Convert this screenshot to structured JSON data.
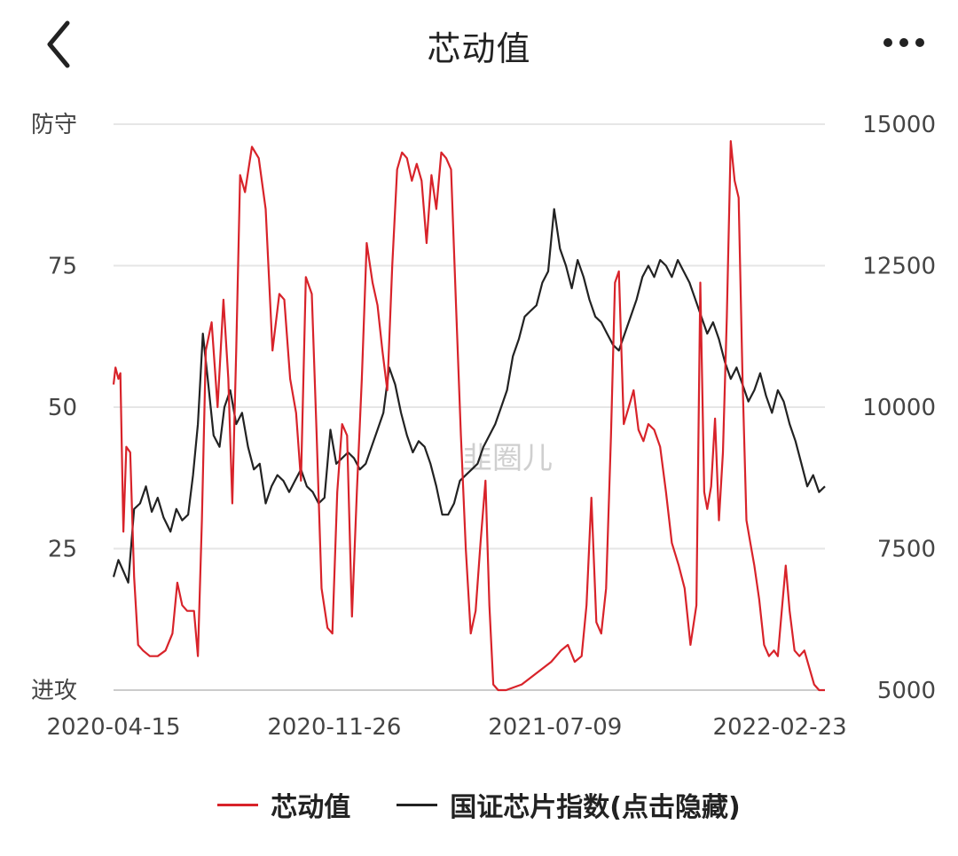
{
  "header": {
    "title": "芯动值",
    "back_icon": "chevron-left-icon",
    "more_icon": "more-dots-icon"
  },
  "colors": {
    "series1": "#d8232a",
    "series2": "#222222",
    "grid": "#e6e6e6",
    "watermark": "#cccccc"
  },
  "watermark": "韭圈儿",
  "chart_data": {
    "type": "line",
    "title": "",
    "grid": true,
    "legend_position": "bottom",
    "x_ticks": [
      "2020-04-15",
      "2020-11-26",
      "2021-07-09",
      "2022-02-23"
    ],
    "x_range": [
      "2020-04-15",
      "2022-04-10"
    ],
    "y_left": {
      "ticks": [
        "进攻",
        "25",
        "50",
        "75",
        "防守"
      ],
      "range": [
        0,
        100
      ]
    },
    "y_right": {
      "ticks": [
        "5000",
        "7500",
        "10000",
        "12500",
        "15000"
      ],
      "range": [
        5000,
        15000
      ]
    },
    "series": [
      {
        "name": "芯动值",
        "axis": "left",
        "color": "#d8232a",
        "points": [
          [
            "2020-04-15",
            54
          ],
          [
            "2020-04-17",
            57
          ],
          [
            "2020-04-20",
            55
          ],
          [
            "2020-04-22",
            56
          ],
          [
            "2020-04-25",
            28
          ],
          [
            "2020-04-28",
            43
          ],
          [
            "2020-05-02",
            42
          ],
          [
            "2020-05-06",
            20
          ],
          [
            "2020-05-10",
            8
          ],
          [
            "2020-05-15",
            7
          ],
          [
            "2020-05-22",
            6
          ],
          [
            "2020-05-30",
            6
          ],
          [
            "2020-06-07",
            7
          ],
          [
            "2020-06-14",
            10
          ],
          [
            "2020-06-19",
            19
          ],
          [
            "2020-06-24",
            15
          ],
          [
            "2020-06-29",
            14
          ],
          [
            "2020-07-06",
            14
          ],
          [
            "2020-07-10",
            6
          ],
          [
            "2020-07-14",
            30
          ],
          [
            "2020-07-18",
            60
          ],
          [
            "2020-07-24",
            65
          ],
          [
            "2020-07-30",
            50
          ],
          [
            "2020-08-05",
            69
          ],
          [
            "2020-08-10",
            55
          ],
          [
            "2020-08-14",
            33
          ],
          [
            "2020-08-18",
            60
          ],
          [
            "2020-08-22",
            91
          ],
          [
            "2020-08-27",
            88
          ],
          [
            "2020-09-03",
            96
          ],
          [
            "2020-09-10",
            94
          ],
          [
            "2020-09-17",
            85
          ],
          [
            "2020-09-24",
            60
          ],
          [
            "2020-10-01",
            70
          ],
          [
            "2020-10-06",
            69
          ],
          [
            "2020-10-12",
            55
          ],
          [
            "2020-10-18",
            49
          ],
          [
            "2020-10-23",
            37
          ],
          [
            "2020-10-28",
            73
          ],
          [
            "2020-11-03",
            70
          ],
          [
            "2020-11-08",
            45
          ],
          [
            "2020-11-13",
            18
          ],
          [
            "2020-11-19",
            11
          ],
          [
            "2020-11-24",
            10
          ],
          [
            "2020-11-29",
            35
          ],
          [
            "2020-12-04",
            47
          ],
          [
            "2020-12-09",
            45
          ],
          [
            "2020-12-14",
            13
          ],
          [
            "2020-12-19",
            35
          ],
          [
            "2020-12-24",
            55
          ],
          [
            "2020-12-29",
            79
          ],
          [
            "2021-01-04",
            72
          ],
          [
            "2021-01-09",
            68
          ],
          [
            "2021-01-14",
            60
          ],
          [
            "2021-01-19",
            53
          ],
          [
            "2021-01-24",
            75
          ],
          [
            "2021-01-29",
            92
          ],
          [
            "2021-02-03",
            95
          ],
          [
            "2021-02-08",
            94
          ],
          [
            "2021-02-13",
            90
          ],
          [
            "2021-02-18",
            93
          ],
          [
            "2021-02-23",
            90
          ],
          [
            "2021-02-28",
            79
          ],
          [
            "2021-03-05",
            91
          ],
          [
            "2021-03-10",
            85
          ],
          [
            "2021-03-15",
            95
          ],
          [
            "2021-03-20",
            94
          ],
          [
            "2021-03-25",
            92
          ],
          [
            "2021-03-30",
            68
          ],
          [
            "2021-04-04",
            45
          ],
          [
            "2021-04-09",
            25
          ],
          [
            "2021-04-14",
            10
          ],
          [
            "2021-04-19",
            14
          ],
          [
            "2021-04-24",
            26
          ],
          [
            "2021-04-29",
            37
          ],
          [
            "2021-05-03",
            15
          ],
          [
            "2021-05-07",
            1
          ],
          [
            "2021-05-12",
            0
          ],
          [
            "2021-05-20",
            0
          ],
          [
            "2021-06-05",
            1
          ],
          [
            "2021-06-20",
            3
          ],
          [
            "2021-07-05",
            5
          ],
          [
            "2021-07-15",
            7
          ],
          [
            "2021-07-22",
            8
          ],
          [
            "2021-07-29",
            5
          ],
          [
            "2021-08-05",
            6
          ],
          [
            "2021-08-10",
            15
          ],
          [
            "2021-08-15",
            34
          ],
          [
            "2021-08-20",
            12
          ],
          [
            "2021-08-25",
            10
          ],
          [
            "2021-08-30",
            18
          ],
          [
            "2021-09-04",
            45
          ],
          [
            "2021-09-08",
            72
          ],
          [
            "2021-09-12",
            74
          ],
          [
            "2021-09-17",
            47
          ],
          [
            "2021-09-22",
            50
          ],
          [
            "2021-09-27",
            53
          ],
          [
            "2021-10-02",
            46
          ],
          [
            "2021-10-07",
            44
          ],
          [
            "2021-10-12",
            47
          ],
          [
            "2021-10-18",
            46
          ],
          [
            "2021-10-24",
            43
          ],
          [
            "2021-10-30",
            35
          ],
          [
            "2021-11-05",
            26
          ],
          [
            "2021-11-12",
            22
          ],
          [
            "2021-11-18",
            18
          ],
          [
            "2021-11-24",
            8
          ],
          [
            "2021-11-30",
            15
          ],
          [
            "2021-12-04",
            72
          ],
          [
            "2021-12-08",
            35
          ],
          [
            "2021-12-11",
            32
          ],
          [
            "2021-12-15",
            36
          ],
          [
            "2021-12-19",
            48
          ],
          [
            "2021-12-23",
            30
          ],
          [
            "2021-12-27",
            42
          ],
          [
            "2021-12-31",
            66
          ],
          [
            "2022-01-04",
            97
          ],
          [
            "2022-01-08",
            90
          ],
          [
            "2022-01-12",
            87
          ],
          [
            "2022-01-16",
            55
          ],
          [
            "2022-01-20",
            30
          ],
          [
            "2022-01-24",
            26
          ],
          [
            "2022-01-28",
            22
          ],
          [
            "2022-02-02",
            16
          ],
          [
            "2022-02-07",
            8
          ],
          [
            "2022-02-12",
            6
          ],
          [
            "2022-02-17",
            7
          ],
          [
            "2022-02-21",
            6
          ],
          [
            "2022-02-25",
            14
          ],
          [
            "2022-03-01",
            22
          ],
          [
            "2022-03-05",
            14
          ],
          [
            "2022-03-10",
            7
          ],
          [
            "2022-03-15",
            6
          ],
          [
            "2022-03-20",
            7
          ],
          [
            "2022-03-25",
            4
          ],
          [
            "2022-03-30",
            1
          ],
          [
            "2022-04-04",
            0
          ],
          [
            "2022-04-10",
            0
          ]
        ]
      },
      {
        "name": "国证芯片指数(点击隐藏)",
        "axis": "right",
        "color": "#222222",
        "points": [
          [
            "2020-04-15",
            7000
          ],
          [
            "2020-04-20",
            7300
          ],
          [
            "2020-04-25",
            7100
          ],
          [
            "2020-04-30",
            6900
          ],
          [
            "2020-05-06",
            8200
          ],
          [
            "2020-05-12",
            8300
          ],
          [
            "2020-05-18",
            8600
          ],
          [
            "2020-05-24",
            8150
          ],
          [
            "2020-05-30",
            8400
          ],
          [
            "2020-06-05",
            8050
          ],
          [
            "2020-06-12",
            7800
          ],
          [
            "2020-06-18",
            8200
          ],
          [
            "2020-06-24",
            8000
          ],
          [
            "2020-06-30",
            8100
          ],
          [
            "2020-07-05",
            8800
          ],
          [
            "2020-07-10",
            9700
          ],
          [
            "2020-07-15",
            11300
          ],
          [
            "2020-07-20",
            10500
          ],
          [
            "2020-07-26",
            9500
          ],
          [
            "2020-08-01",
            9300
          ],
          [
            "2020-08-06",
            10000
          ],
          [
            "2020-08-12",
            10300
          ],
          [
            "2020-08-18",
            9700
          ],
          [
            "2020-08-24",
            9900
          ],
          [
            "2020-08-30",
            9300
          ],
          [
            "2020-09-05",
            8900
          ],
          [
            "2020-09-11",
            9000
          ],
          [
            "2020-09-17",
            8300
          ],
          [
            "2020-09-23",
            8600
          ],
          [
            "2020-09-29",
            8800
          ],
          [
            "2020-10-05",
            8700
          ],
          [
            "2020-10-11",
            8500
          ],
          [
            "2020-10-17",
            8700
          ],
          [
            "2020-10-23",
            8900
          ],
          [
            "2020-10-29",
            8600
          ],
          [
            "2020-11-04",
            8500
          ],
          [
            "2020-11-10",
            8300
          ],
          [
            "2020-11-16",
            8400
          ],
          [
            "2020-11-22",
            9600
          ],
          [
            "2020-11-28",
            9000
          ],
          [
            "2020-12-04",
            9100
          ],
          [
            "2020-12-10",
            9200
          ],
          [
            "2020-12-16",
            9100
          ],
          [
            "2020-12-22",
            8900
          ],
          [
            "2020-12-28",
            9000
          ],
          [
            "2021-01-03",
            9300
          ],
          [
            "2021-01-09",
            9600
          ],
          [
            "2021-01-15",
            9900
          ],
          [
            "2021-01-21",
            10700
          ],
          [
            "2021-01-27",
            10400
          ],
          [
            "2021-02-02",
            9900
          ],
          [
            "2021-02-08",
            9500
          ],
          [
            "2021-02-14",
            9200
          ],
          [
            "2021-02-20",
            9400
          ],
          [
            "2021-02-26",
            9300
          ],
          [
            "2021-03-04",
            9000
          ],
          [
            "2021-03-10",
            8600
          ],
          [
            "2021-03-16",
            8100
          ],
          [
            "2021-03-22",
            8100
          ],
          [
            "2021-03-28",
            8300
          ],
          [
            "2021-04-03",
            8700
          ],
          [
            "2021-04-09",
            8800
          ],
          [
            "2021-04-15",
            8900
          ],
          [
            "2021-04-21",
            9000
          ],
          [
            "2021-04-27",
            9300
          ],
          [
            "2021-05-03",
            9500
          ],
          [
            "2021-05-09",
            9700
          ],
          [
            "2021-05-15",
            10000
          ],
          [
            "2021-05-21",
            10300
          ],
          [
            "2021-05-27",
            10900
          ],
          [
            "2021-06-02",
            11200
          ],
          [
            "2021-06-08",
            11600
          ],
          [
            "2021-06-14",
            11700
          ],
          [
            "2021-06-20",
            11800
          ],
          [
            "2021-06-26",
            12200
          ],
          [
            "2021-07-02",
            12400
          ],
          [
            "2021-07-08",
            13500
          ],
          [
            "2021-07-14",
            12800
          ],
          [
            "2021-07-20",
            12500
          ],
          [
            "2021-07-26",
            12100
          ],
          [
            "2021-08-01",
            12600
          ],
          [
            "2021-08-07",
            12300
          ],
          [
            "2021-08-13",
            11900
          ],
          [
            "2021-08-19",
            11600
          ],
          [
            "2021-08-25",
            11500
          ],
          [
            "2021-08-31",
            11300
          ],
          [
            "2021-09-06",
            11100
          ],
          [
            "2021-09-12",
            11000
          ],
          [
            "2021-09-18",
            11300
          ],
          [
            "2021-09-24",
            11600
          ],
          [
            "2021-09-30",
            11900
          ],
          [
            "2021-10-06",
            12300
          ],
          [
            "2021-10-12",
            12500
          ],
          [
            "2021-10-18",
            12300
          ],
          [
            "2021-10-24",
            12600
          ],
          [
            "2021-10-30",
            12500
          ],
          [
            "2021-11-05",
            12300
          ],
          [
            "2021-11-11",
            12600
          ],
          [
            "2021-11-17",
            12400
          ],
          [
            "2021-11-23",
            12200
          ],
          [
            "2021-11-29",
            11900
          ],
          [
            "2021-12-05",
            11600
          ],
          [
            "2021-12-11",
            11300
          ],
          [
            "2021-12-17",
            11500
          ],
          [
            "2021-12-23",
            11200
          ],
          [
            "2021-12-29",
            10800
          ],
          [
            "2022-01-04",
            10500
          ],
          [
            "2022-01-10",
            10700
          ],
          [
            "2022-01-16",
            10400
          ],
          [
            "2022-01-22",
            10100
          ],
          [
            "2022-01-28",
            10300
          ],
          [
            "2022-02-03",
            10600
          ],
          [
            "2022-02-09",
            10200
          ],
          [
            "2022-02-15",
            9900
          ],
          [
            "2022-02-21",
            10300
          ],
          [
            "2022-02-27",
            10100
          ],
          [
            "2022-03-05",
            9700
          ],
          [
            "2022-03-11",
            9400
          ],
          [
            "2022-03-17",
            9000
          ],
          [
            "2022-03-23",
            8600
          ],
          [
            "2022-03-29",
            8800
          ],
          [
            "2022-04-04",
            8500
          ],
          [
            "2022-04-10",
            8600
          ]
        ]
      }
    ]
  }
}
